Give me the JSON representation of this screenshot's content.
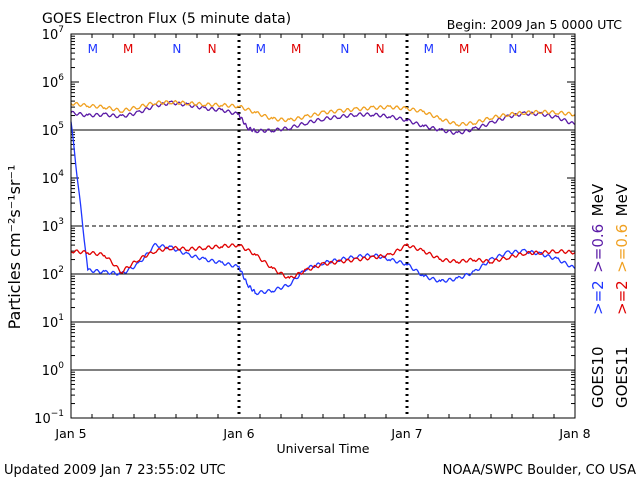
{
  "chart_data": {
    "type": "line",
    "title": "GOES Electron Flux (5 minute data)",
    "begin": "Begin: 2009 Jan 5 0000 UTC",
    "xlabel": "Universal Time",
    "ylabel": "Particles cm⁻²s⁻¹sr⁻¹",
    "y_scale": "log",
    "ylim": [
      0.1,
      10000000
    ],
    "y_ticks": [
      {
        "base": "10",
        "exp": "7"
      },
      {
        "base": "10",
        "exp": "6"
      },
      {
        "base": "10",
        "exp": "5"
      },
      {
        "base": "10",
        "exp": "4"
      },
      {
        "base": "10",
        "exp": "3"
      },
      {
        "base": "10",
        "exp": "2"
      },
      {
        "base": "10",
        "exp": "1"
      },
      {
        "base": "10",
        "exp": "0"
      },
      {
        "base": "10",
        "exp": "−1"
      }
    ],
    "hline_solid": [
      100000,
      100,
      10,
      1
    ],
    "hline_dashed": [
      1000
    ],
    "x_range_days": [
      0,
      3
    ],
    "x_ticks": [
      "Jan 5",
      "Jan 6",
      "Jan 7",
      "Jan 8"
    ],
    "x_tick_positions": [
      0,
      1,
      2,
      3
    ],
    "markers": [
      {
        "t": 0.13,
        "label": "M",
        "color": "#1f36ff"
      },
      {
        "t": 0.34,
        "label": "M",
        "color": "#e00000"
      },
      {
        "t": 0.63,
        "label": "N",
        "color": "#1f36ff"
      },
      {
        "t": 0.84,
        "label": "N",
        "color": "#e00000"
      },
      {
        "t": 1.13,
        "label": "M",
        "color": "#1f36ff"
      },
      {
        "t": 1.34,
        "label": "M",
        "color": "#e00000"
      },
      {
        "t": 1.63,
        "label": "N",
        "color": "#1f36ff"
      },
      {
        "t": 1.84,
        "label": "N",
        "color": "#e00000"
      },
      {
        "t": 2.13,
        "label": "M",
        "color": "#1f36ff"
      },
      {
        "t": 2.34,
        "label": "M",
        "color": "#e00000"
      },
      {
        "t": 2.63,
        "label": "N",
        "color": "#1f36ff"
      },
      {
        "t": 2.84,
        "label": "N",
        "color": "#e00000"
      }
    ],
    "series": [
      {
        "name": "GOES10 >=0.6 MeV",
        "color": "#5a1aa6",
        "x": [
          0,
          0.1,
          0.2,
          0.3,
          0.4,
          0.5,
          0.6,
          0.7,
          0.8,
          0.9,
          1.0,
          1.05,
          1.1,
          1.2,
          1.3,
          1.4,
          1.5,
          1.6,
          1.7,
          1.8,
          1.9,
          2.0,
          2.1,
          2.2,
          2.3,
          2.4,
          2.5,
          2.6,
          2.7,
          2.8,
          2.9,
          3.0
        ],
        "y": [
          230000,
          200000,
          210000,
          190000,
          230000,
          320000,
          370000,
          330000,
          280000,
          260000,
          210000,
          110000,
          95000,
          98000,
          110000,
          140000,
          170000,
          190000,
          210000,
          210000,
          190000,
          160000,
          120000,
          100000,
          85000,
          105000,
          140000,
          190000,
          220000,
          215000,
          180000,
          130000
        ]
      },
      {
        "name": "GOES11 >=0.6 MeV",
        "color": "#f0a020",
        "x": [
          0,
          0.1,
          0.2,
          0.3,
          0.4,
          0.5,
          0.6,
          0.7,
          0.8,
          0.9,
          1.0,
          1.1,
          1.2,
          1.3,
          1.4,
          1.5,
          1.6,
          1.7,
          1.8,
          1.9,
          2.0,
          2.1,
          2.2,
          2.3,
          2.4,
          2.5,
          2.6,
          2.7,
          2.8,
          2.9,
          3.0
        ],
        "y": [
          360000,
          320000,
          300000,
          250000,
          300000,
          370000,
          380000,
          360000,
          340000,
          330000,
          310000,
          230000,
          170000,
          160000,
          190000,
          230000,
          250000,
          270000,
          290000,
          300000,
          280000,
          240000,
          170000,
          130000,
          140000,
          180000,
          210000,
          230000,
          240000,
          230000,
          210000
        ]
      },
      {
        "name": "GOES10 >=2 MeV",
        "color": "#1f36ff",
        "x": [
          0,
          0.1,
          0.2,
          0.3,
          0.4,
          0.5,
          0.6,
          0.7,
          0.8,
          0.9,
          1.0,
          1.05,
          1.1,
          1.2,
          1.3,
          1.4,
          1.5,
          1.6,
          1.7,
          1.8,
          1.9,
          2.0,
          2.1,
          2.2,
          2.3,
          2.4,
          2.5,
          2.6,
          2.7,
          2.8,
          2.9,
          3.0
        ],
        "y": [
          150000,
          120,
          110,
          100,
          160,
          400,
          350,
          250,
          200,
          170,
          140,
          60,
          40,
          45,
          60,
          130,
          170,
          200,
          230,
          250,
          200,
          160,
          90,
          70,
          80,
          110,
          200,
          280,
          300,
          260,
          200,
          130
        ]
      },
      {
        "name": "GOES11 >=2 MeV",
        "color": "#e00000",
        "x": [
          0,
          0.1,
          0.2,
          0.3,
          0.4,
          0.5,
          0.6,
          0.7,
          0.8,
          0.9,
          1.0,
          1.1,
          1.2,
          1.3,
          1.4,
          1.5,
          1.6,
          1.7,
          1.8,
          1.9,
          2.0,
          2.1,
          2.2,
          2.3,
          2.4,
          2.5,
          2.6,
          2.7,
          2.8,
          2.9,
          3.0
        ],
        "y": [
          300,
          280,
          250,
          110,
          200,
          300,
          350,
          330,
          350,
          380,
          400,
          250,
          130,
          80,
          120,
          160,
          180,
          200,
          220,
          250,
          400,
          300,
          200,
          180,
          200,
          180,
          220,
          270,
          280,
          300,
          280
        ]
      }
    ],
    "legend": [
      {
        "label": ">=2",
        "color": "#1f36ff"
      },
      {
        "label": ">=0.6",
        "color": "#5a1aa6"
      },
      {
        "label": "MeV",
        "color": "#000000"
      },
      {
        "label": ">=2",
        "color": "#e00000"
      },
      {
        "label": ">=0.6",
        "color": "#f0a020"
      },
      {
        "label": "MeV",
        "color": "#000000"
      }
    ],
    "legend_sat": [
      "GOES10",
      "GOES11"
    ]
  },
  "footer": {
    "updated": "Updated 2009 Jan  7 23:55:02 UTC",
    "source": "NOAA/SWPC Boulder, CO USA"
  }
}
